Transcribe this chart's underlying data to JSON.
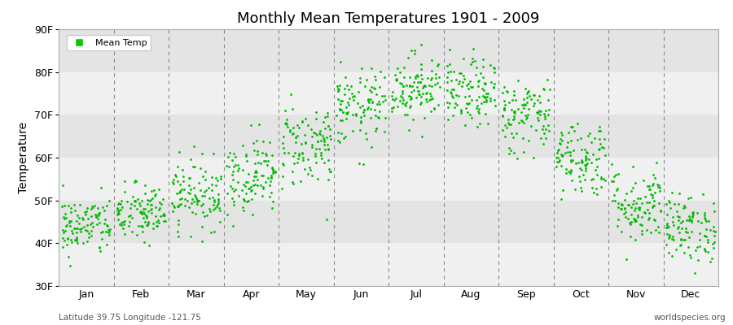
{
  "title": "Monthly Mean Temperatures 1901 - 2009",
  "ylabel": "Temperature",
  "xlabel": "",
  "ylim": [
    30,
    90
  ],
  "yticks": [
    30,
    40,
    50,
    60,
    70,
    80,
    90
  ],
  "ytick_labels": [
    "30F",
    "40F",
    "50F",
    "60F",
    "70F",
    "80F",
    "90F"
  ],
  "months": [
    "Jan",
    "Feb",
    "Mar",
    "Apr",
    "May",
    "Jun",
    "Jul",
    "Aug",
    "Sep",
    "Oct",
    "Nov",
    "Dec"
  ],
  "mean_temps": [
    44.0,
    47.0,
    51.5,
    56.0,
    63.0,
    71.5,
    76.5,
    75.0,
    70.0,
    60.0,
    49.0,
    43.5
  ],
  "temp_spreads": [
    3.5,
    3.5,
    4.0,
    4.5,
    5.0,
    4.5,
    4.0,
    4.0,
    4.5,
    4.5,
    4.5,
    4.0
  ],
  "dot_color": "#00bb00",
  "legend_color": "#00cc00",
  "background_color": "#ffffff",
  "plot_bg_color": "#f0f0f0",
  "band_color1": "#f0f0f0",
  "band_color2": "#e4e4e4",
  "grid_color": "#888888",
  "n_years": 109,
  "subtitle_left": "Latitude 39.75 Longitude -121.75",
  "subtitle_right": "worldspecies.org",
  "figsize": [
    9.0,
    4.0
  ],
  "dpi": 100,
  "dot_size": 4
}
